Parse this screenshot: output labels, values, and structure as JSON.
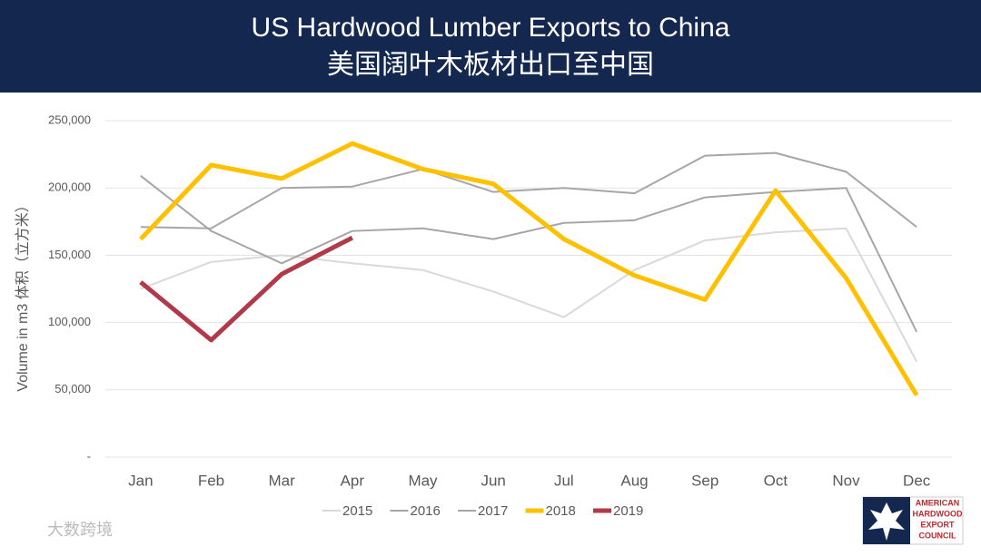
{
  "chart_data": {
    "type": "line",
    "title": "US Hardwood Lumber Exports to China",
    "subtitle": "美国阔叶木板材出口至中国",
    "y_label": "Volume in m3 体积（立方米）",
    "categories": [
      "Jan",
      "Feb",
      "Mar",
      "Apr",
      "May",
      "Jun",
      "Jul",
      "Aug",
      "Sep",
      "Oct",
      "Nov",
      "Dec"
    ],
    "series": [
      {
        "name": "2015",
        "color": "#d9d9d9",
        "width": 2,
        "values": [
          125000,
          145000,
          150000,
          144000,
          139000,
          123000,
          104000,
          139000,
          161000,
          167000,
          170000,
          71000
        ]
      },
      {
        "name": "2016",
        "color": "#a6a6a6",
        "width": 2,
        "values": [
          209000,
          168000,
          144000,
          168000,
          170000,
          162000,
          174000,
          176000,
          193000,
          197000,
          200000,
          93000
        ]
      },
      {
        "name": "2017",
        "color": "#a6a6a6",
        "width": 2,
        "values": [
          171000,
          170000,
          200000,
          201000,
          214000,
          197000,
          200000,
          196000,
          224000,
          226000,
          212000,
          171000
        ]
      },
      {
        "name": "2018",
        "color": "#ffc000",
        "width": 5,
        "values": [
          162000,
          217000,
          207000,
          233000,
          214000,
          203000,
          162000,
          135000,
          117000,
          198000,
          133000,
          46000
        ]
      },
      {
        "name": "2019",
        "color": "#b03a4a",
        "width": 5,
        "values": [
          130000,
          87000,
          136000,
          163000,
          null,
          null,
          null,
          null,
          null,
          null,
          null,
          null
        ]
      }
    ],
    "ylim": [
      0,
      250000
    ],
    "yticks": [
      {
        "value": 0,
        "label": "-"
      },
      {
        "value": 50000,
        "label": "50,000"
      },
      {
        "value": 100000,
        "label": "100,000"
      },
      {
        "value": 150000,
        "label": "150,000"
      },
      {
        "value": 200000,
        "label": "200,000"
      },
      {
        "value": 250000,
        "label": "250,000"
      }
    ],
    "grid": true,
    "legend": "bottom"
  },
  "logo": {
    "lines": [
      "AMERICAN",
      "HARDWOOD",
      "EXPORT",
      "COUNCIL"
    ]
  },
  "watermark": "大数跨境"
}
